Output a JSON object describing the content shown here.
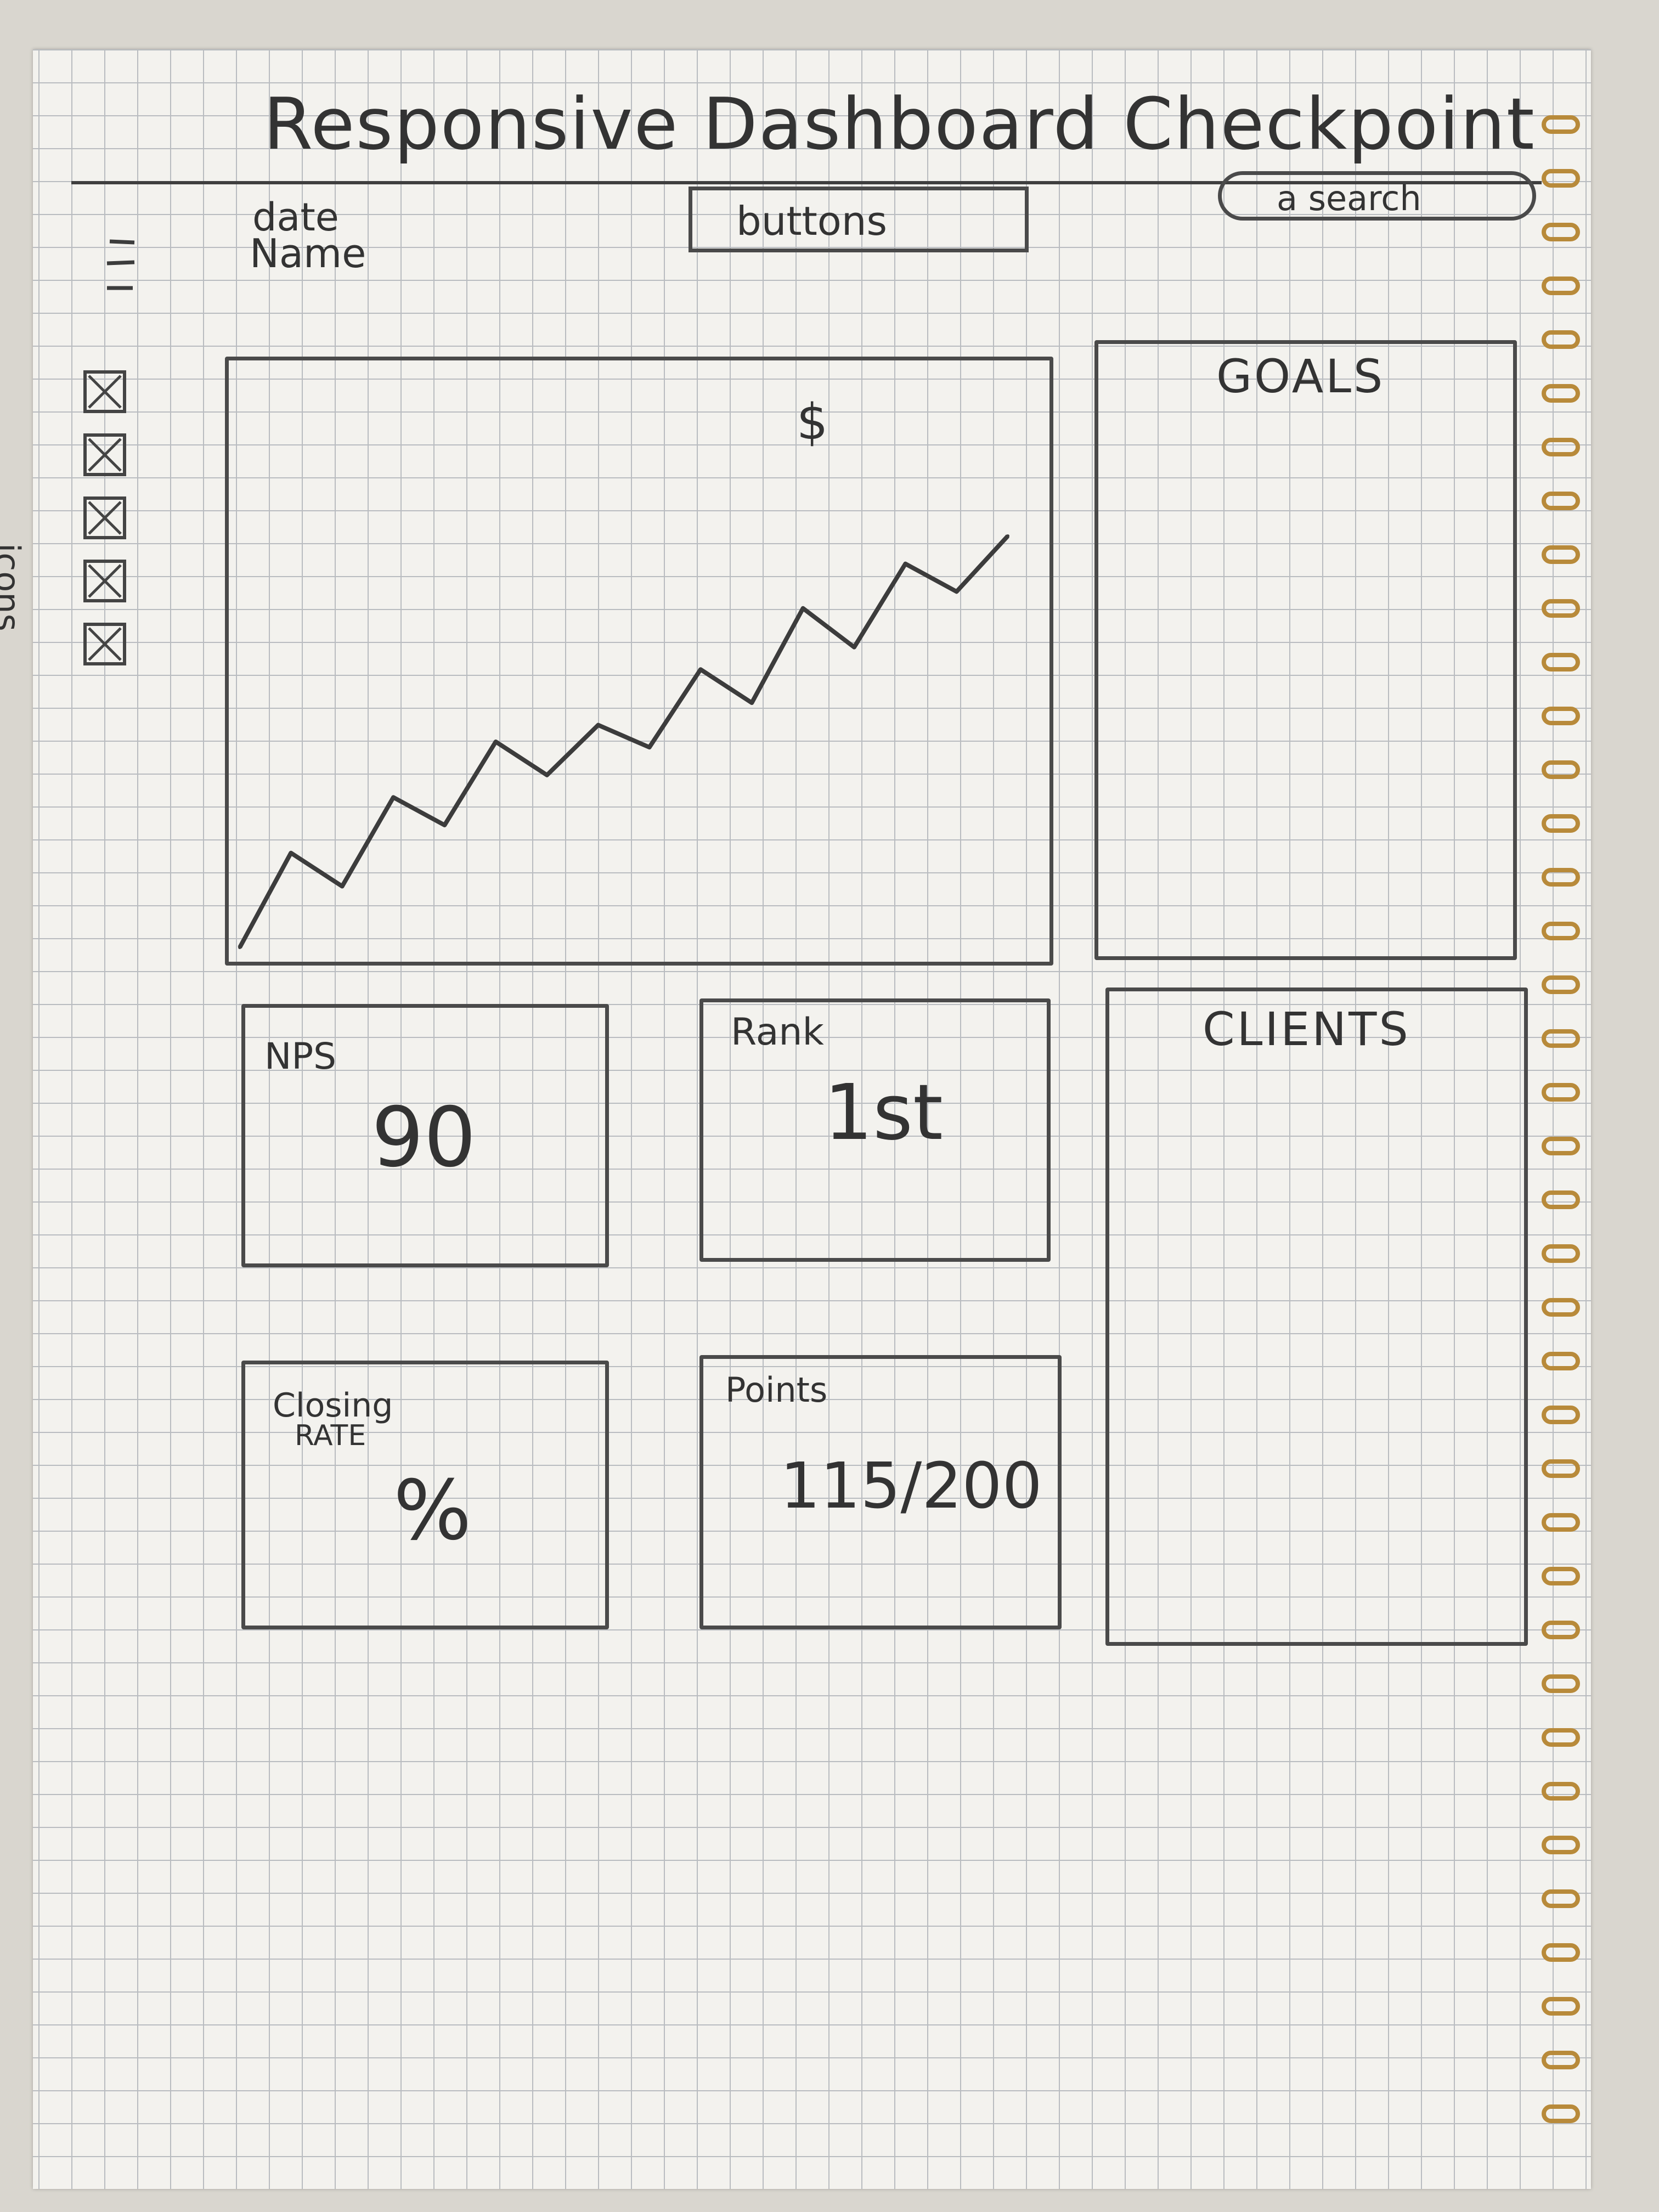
{
  "page": {
    "title": "Responsive Dashboard Checkpoint"
  },
  "header": {
    "menu_icon": "hamburger-icon",
    "date_label": "date",
    "name_label": "Name",
    "buttons_label": "buttons",
    "search_placeholder": "a search"
  },
  "sidebar": {
    "label": "icons",
    "icons": [
      "placeholder-icon",
      "placeholder-icon",
      "placeholder-icon",
      "placeholder-icon",
      "placeholder-icon"
    ]
  },
  "chart": {
    "title": "$",
    "chart_data": {
      "type": "line",
      "title": "$",
      "xlabel": "",
      "ylabel": "",
      "series": [
        {
          "values": [
            0,
            1.7,
            1.1,
            2.7,
            2.2,
            3.7,
            3.1,
            4.0,
            3.6,
            5.0,
            4.4,
            6.1,
            5.4,
            6.9,
            6.4,
            7.4
          ]
        }
      ]
    }
  },
  "goals": {
    "title": "GOALS"
  },
  "clients": {
    "title": "CLIENTS"
  },
  "cards": {
    "nps": {
      "label": "NPS",
      "value": "90"
    },
    "rank": {
      "label": "Rank",
      "value": "1st"
    },
    "closing": {
      "label_1": "Closing",
      "label_2": "RATE",
      "value": "%"
    },
    "points": {
      "label": "Points",
      "value": "115/200"
    }
  },
  "colors": {
    "paper": "#f3f2ee",
    "grid": "#b9bcc0",
    "ink": "#3c3c3c",
    "coil": "#b88a3a"
  }
}
